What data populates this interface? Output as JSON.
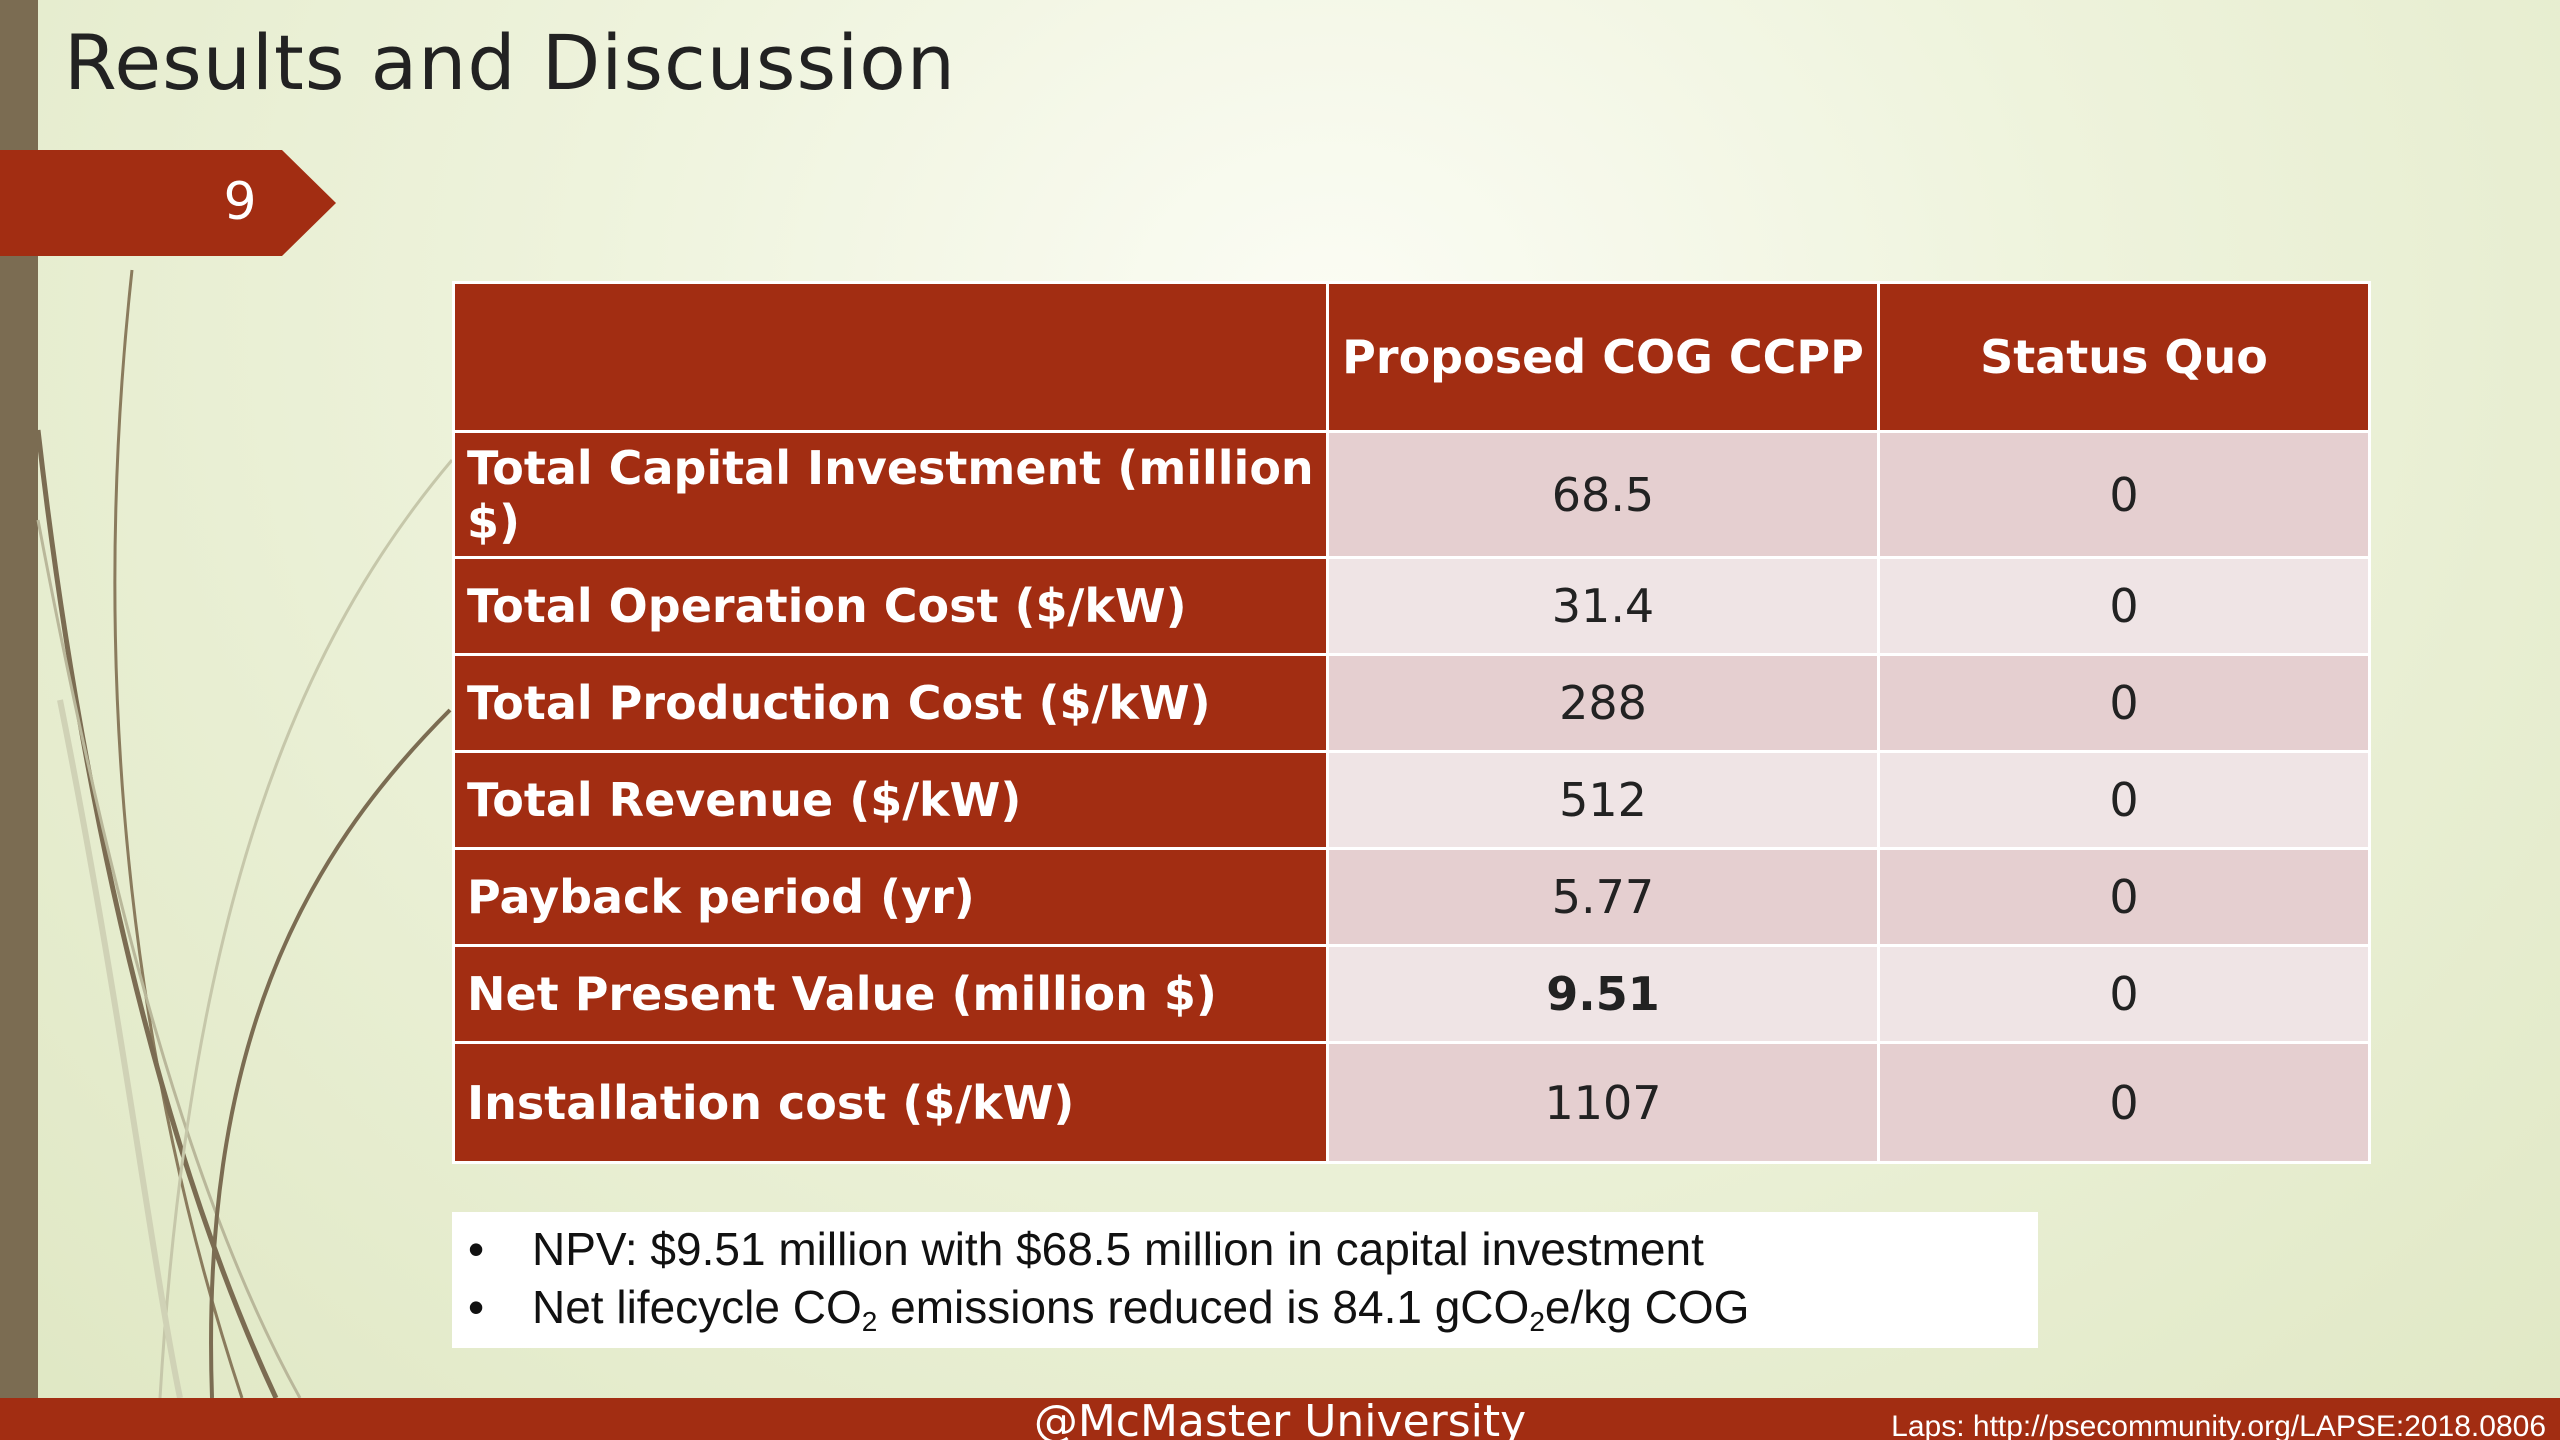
{
  "slide": {
    "title": "Results and Discussion",
    "number": "9"
  },
  "table": {
    "headers": [
      "",
      "Proposed COG CCPP",
      "Status Quo"
    ],
    "rows": [
      {
        "label": "Total Capital Investment (million $)",
        "proposed": "68.5",
        "status_quo": "0"
      },
      {
        "label": "Total Operation Cost  ($/kW)",
        "proposed": "31.4",
        "status_quo": "0"
      },
      {
        "label": "Total Production Cost ($/kW)",
        "proposed": "288",
        "status_quo": "0"
      },
      {
        "label": "Total Revenue ($/kW)",
        "proposed": "512",
        "status_quo": "0"
      },
      {
        "label": "Payback period (yr)",
        "proposed": "5.77",
        "status_quo": "0"
      },
      {
        "label": "Net Present Value (million $)",
        "proposed": "9.51",
        "status_quo": "0"
      },
      {
        "label": "Installation cost ($/kW)",
        "proposed": "1107",
        "status_quo": "0"
      }
    ]
  },
  "notes": {
    "bullet1": "NPV: $9.51 million with $68.5 million in capital investment",
    "bullet2": {
      "part1": "Net lifecycle CO",
      "sub1": "2",
      "part2": " emissions reduced is 84.1 gCO",
      "sub2": "2",
      "part3": "e/kg COG"
    }
  },
  "footer": {
    "center": "@McMaster University",
    "right": "Laps: http://psecommunity.org/LAPSE:2018.0806"
  },
  "colors": {
    "accent": "#a22d12",
    "left_bar": "#7b6c52",
    "row_odd": "#e5cfd0",
    "row_even": "#efe4e5"
  }
}
